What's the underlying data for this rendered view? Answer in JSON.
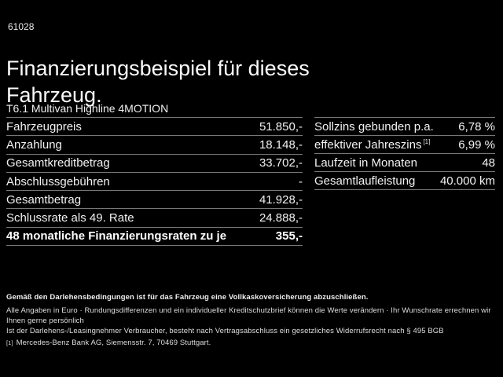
{
  "page": {
    "background_color": "#000000",
    "text_color": "#f2f2f2",
    "separator_color": "#777777"
  },
  "header": {
    "code": "61028",
    "title": "Finanzierungsbeispiel für dieses Fahrzeug.",
    "vehicle": "T6.1 Multivan Highline 4MOTION"
  },
  "finance_table": {
    "rows": [
      {
        "label": "Fahrzeugpreis",
        "value": "51.850,-"
      },
      {
        "label": "Anzahlung",
        "value": "18.148,-"
      },
      {
        "label": "Gesamtkreditbetrag",
        "value": "33.702,-"
      },
      {
        "label": "Abschlussgebühren",
        "value": "-"
      },
      {
        "label": "Gesamtbetrag",
        "value": "41.928,-"
      },
      {
        "label": "Schlussrate als 49. Rate",
        "value": "24.888,-"
      },
      {
        "label": "48 monatliche Finanzierungsraten zu je",
        "value": "355,-",
        "bold": true
      }
    ]
  },
  "conditions_table": {
    "rows": [
      {
        "label": "Sollzins gebunden p.a.",
        "value": "6,78 %"
      },
      {
        "label": "effektiver Jahreszins",
        "sup": "[1]",
        "value": "6,99 %"
      },
      {
        "label": "Laufzeit in Monaten",
        "value": "48"
      },
      {
        "label": "Gesamtlaufleistung",
        "value": "40.000 km"
      }
    ]
  },
  "footer": {
    "line1": "Gemäß den Darlehensbedingungen ist für das Fahrzeug eine Vollkaskoversicherung abzuschließen.",
    "line2": "Alle Angaben in Euro · Rundungsdifferenzen und ein individueller Kreditschutzbrief können die Werte verändern · Ihr Wunschrate errechnen wir Ihnen gerne persönlich",
    "line3": "Ist der Darlehens-/Leasingnehmer Verbraucher, besteht nach Vertragsabschluss ein gesetzliches Widerrufsrecht nach § 495 BGB",
    "footnote_marker": "[1]",
    "footnote_text": "Mercedes-Benz Bank AG, Siemensstr. 7, 70469 Stuttgart."
  }
}
